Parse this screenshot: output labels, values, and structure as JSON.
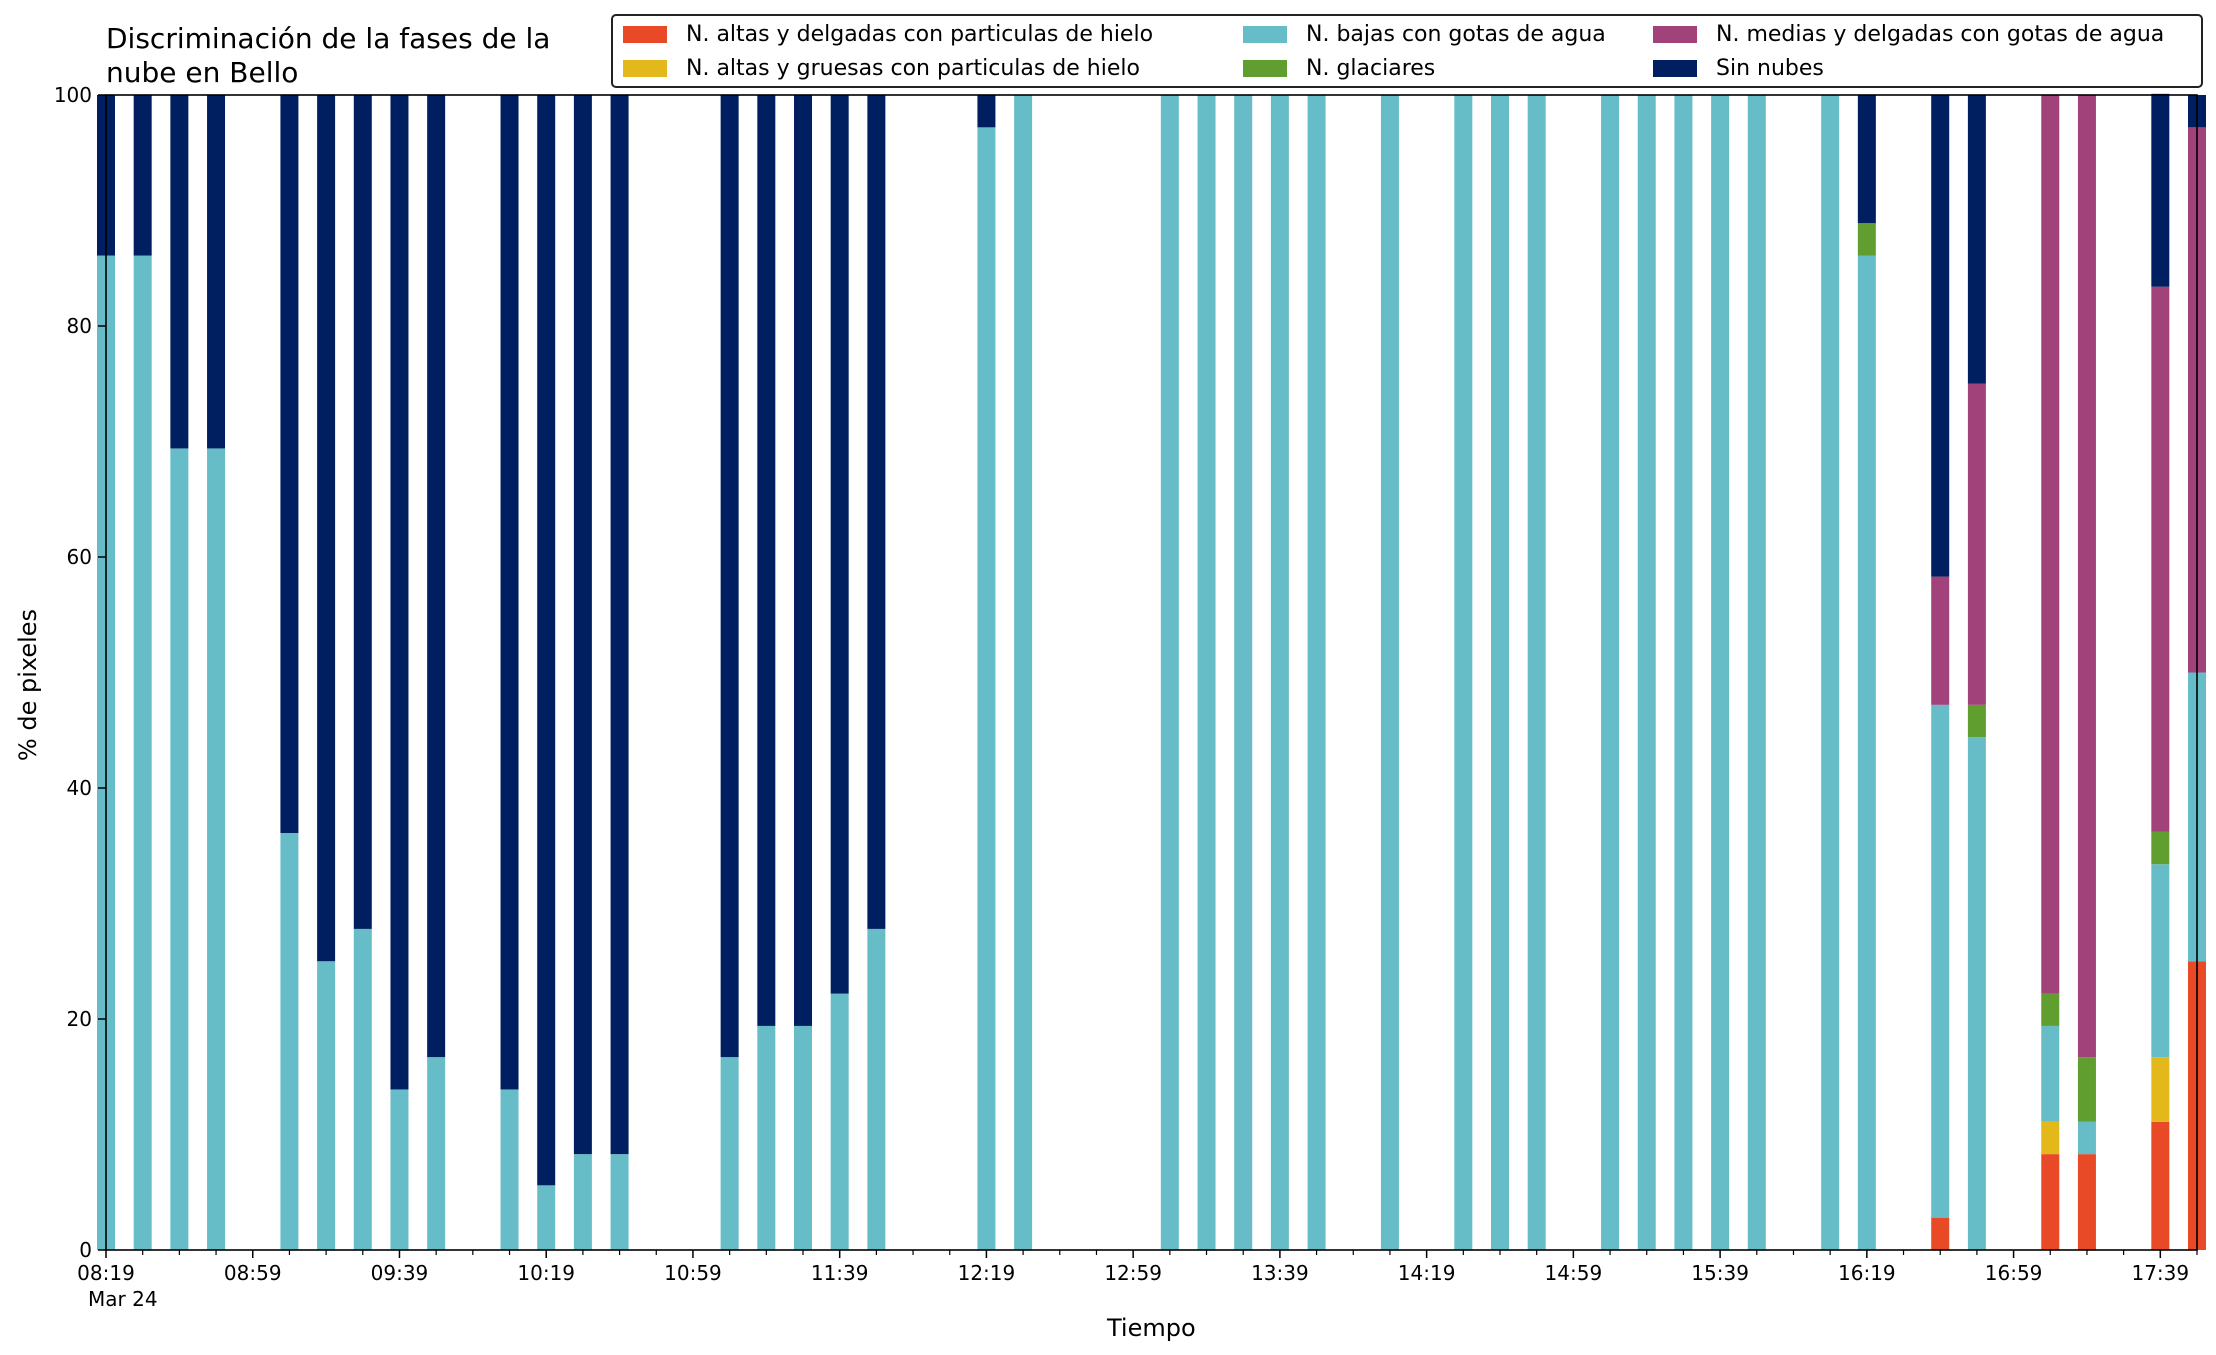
{
  "chart_data": {
    "type": "bar",
    "stacked": true,
    "title": "Discriminación de la fases de la\nnube en Bello",
    "xlabel": "Tiempo",
    "ylabel": "% de pixeles",
    "ylim": [
      0,
      100
    ],
    "yticks": [
      0,
      20,
      40,
      60,
      80,
      100
    ],
    "xlim": [
      499,
      1069
    ],
    "xtick_labels": [
      "08:19",
      "08:59",
      "09:39",
      "10:19",
      "10:59",
      "11:39",
      "12:19",
      "12:59",
      "13:39",
      "14:19",
      "14:59",
      "15:39",
      "16:19",
      "16:59",
      "17:39"
    ],
    "xtick_sub": "Mar 24",
    "legend_position": "top-right",
    "series": [
      {
        "name": "N. altas y delgadas con particulas de hielo",
        "color": "#e84a27"
      },
      {
        "name": "N. altas y gruesas con particulas de hielo",
        "color": "#e3b81a"
      },
      {
        "name": "N. bajas con gotas de agua",
        "color": "#66bdc8"
      },
      {
        "name": "N. glaciares",
        "color": "#5f9e2f"
      },
      {
        "name": "N. medias y delgadas con gotas de agua",
        "color": "#a1437a"
      },
      {
        "name": "Sin nubes",
        "color": "#001f60"
      }
    ],
    "bars": [
      {
        "time": "08:19",
        "values": [
          0,
          0,
          86.1,
          0,
          0,
          13.9
        ]
      },
      {
        "time": "08:29",
        "values": [
          0,
          0,
          86.1,
          0,
          0,
          13.9
        ]
      },
      {
        "time": "08:39",
        "values": [
          0,
          0,
          69.4,
          0,
          0,
          30.6
        ]
      },
      {
        "time": "08:49",
        "values": [
          0,
          0,
          69.4,
          0,
          0,
          30.6
        ]
      },
      {
        "time": "09:09",
        "values": [
          0,
          0,
          36.1,
          0,
          0,
          63.9
        ]
      },
      {
        "time": "09:19",
        "values": [
          0,
          0,
          25.0,
          0,
          0,
          75.0
        ]
      },
      {
        "time": "09:29",
        "values": [
          0,
          0,
          27.8,
          0,
          0,
          72.2
        ]
      },
      {
        "time": "09:39",
        "values": [
          0,
          0,
          13.9,
          0,
          0,
          86.1
        ]
      },
      {
        "time": "09:49",
        "values": [
          0,
          0,
          16.7,
          0,
          0,
          83.3
        ]
      },
      {
        "time": "10:09",
        "values": [
          0,
          0,
          13.9,
          0,
          0,
          86.1
        ]
      },
      {
        "time": "10:19",
        "values": [
          0,
          0,
          5.6,
          0,
          0,
          94.4
        ]
      },
      {
        "time": "10:29",
        "values": [
          0,
          0,
          8.3,
          0,
          0,
          91.7
        ]
      },
      {
        "time": "10:39",
        "values": [
          0,
          0,
          8.3,
          0,
          0,
          91.7
        ]
      },
      {
        "time": "11:09",
        "values": [
          0,
          0,
          16.7,
          0,
          0,
          83.3
        ]
      },
      {
        "time": "11:19",
        "values": [
          0,
          0,
          19.4,
          0,
          0,
          80.6
        ]
      },
      {
        "time": "11:29",
        "values": [
          0,
          0,
          19.4,
          0,
          0,
          80.6
        ]
      },
      {
        "time": "11:39",
        "values": [
          0,
          0,
          22.2,
          0,
          0,
          77.8
        ]
      },
      {
        "time": "11:49",
        "values": [
          0,
          0,
          27.8,
          0,
          0,
          72.2
        ]
      },
      {
        "time": "12:19",
        "values": [
          0,
          0,
          97.2,
          0,
          0,
          2.8
        ]
      },
      {
        "time": "12:29",
        "values": [
          0,
          0,
          100,
          0,
          0,
          0
        ]
      },
      {
        "time": "13:09",
        "values": [
          0,
          0,
          100,
          0,
          0,
          0
        ]
      },
      {
        "time": "13:19",
        "values": [
          0,
          0,
          100,
          0,
          0,
          0
        ]
      },
      {
        "time": "13:29",
        "values": [
          0,
          0,
          100,
          0,
          0,
          0
        ]
      },
      {
        "time": "13:39",
        "values": [
          0,
          0,
          100,
          0,
          0,
          0
        ]
      },
      {
        "time": "13:49",
        "values": [
          0,
          0,
          100,
          0,
          0,
          0
        ]
      },
      {
        "time": "14:09",
        "values": [
          0,
          0,
          100,
          0,
          0,
          0
        ]
      },
      {
        "time": "14:29",
        "values": [
          0,
          0,
          100,
          0,
          0,
          0
        ]
      },
      {
        "time": "14:39",
        "values": [
          0,
          0,
          100,
          0,
          0,
          0
        ]
      },
      {
        "time": "14:49",
        "values": [
          0,
          0,
          100,
          0,
          0,
          0
        ]
      },
      {
        "time": "15:09",
        "values": [
          0,
          0,
          100,
          0,
          0,
          0
        ]
      },
      {
        "time": "15:19",
        "values": [
          0,
          0,
          100,
          0,
          0,
          0
        ]
      },
      {
        "time": "15:29",
        "values": [
          0,
          0,
          100,
          0,
          0,
          0
        ]
      },
      {
        "time": "15:39",
        "values": [
          0,
          0,
          100,
          0,
          0,
          0
        ]
      },
      {
        "time": "15:49",
        "values": [
          0,
          0,
          100,
          0,
          0,
          0
        ]
      },
      {
        "time": "16:09",
        "values": [
          0,
          0,
          100,
          0,
          0,
          0
        ]
      },
      {
        "time": "16:19",
        "values": [
          0,
          0,
          86.1,
          2.8,
          0,
          11.1
        ]
      },
      {
        "time": "16:39",
        "values": [
          2.8,
          0,
          44.4,
          0,
          11.1,
          41.7
        ]
      },
      {
        "time": "16:49",
        "values": [
          0,
          0,
          44.4,
          2.8,
          27.8,
          25.0
        ]
      },
      {
        "time": "17:09",
        "values": [
          8.3,
          2.8,
          8.3,
          2.8,
          77.8,
          0
        ]
      },
      {
        "time": "17:19",
        "values": [
          8.3,
          0,
          2.8,
          5.6,
          83.3,
          0
        ]
      },
      {
        "time": "17:39",
        "values": [
          11.1,
          5.6,
          16.7,
          2.8,
          47.2,
          16.7
        ]
      },
      {
        "time": "17:49",
        "values": [
          25.0,
          0,
          25.0,
          0,
          47.2,
          2.8
        ]
      }
    ]
  }
}
